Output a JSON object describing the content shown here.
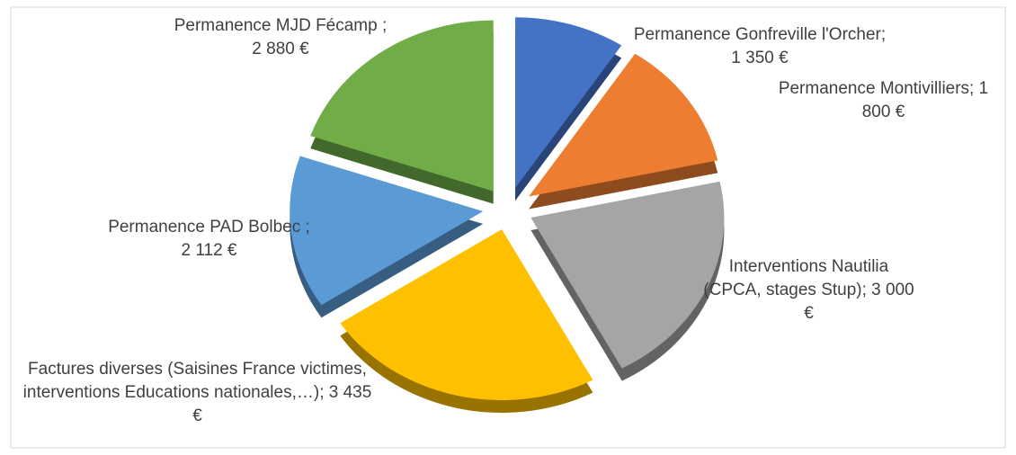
{
  "chart_data": {
    "type": "pie",
    "categories": [
      "Permanence Gonfreville l'Orcher; 1 350 €",
      "Permanence Montivilliers; 1 800 €",
      "Interventions Nautilia (CPCA, stages Stup); 3 000 €",
      "Factures diverses (Saisines France victimes, interventions Educations nationales,…); 3 435 €",
      "Permanence PAD Bolbec ; 2 112 €",
      "Permanence MJD Fécamp ; 2 880 €"
    ],
    "values": [
      1350,
      1800,
      3000,
      3435,
      2112,
      2880
    ],
    "colors": [
      "#4472c4",
      "#ed7d31",
      "#a5a5a5",
      "#ffc000",
      "#5b9bd5",
      "#70ad47"
    ]
  }
}
